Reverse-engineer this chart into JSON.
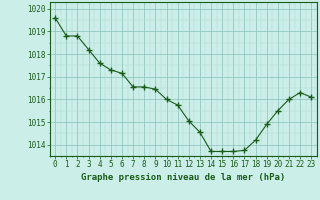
{
  "x": [
    0,
    1,
    2,
    3,
    4,
    5,
    6,
    7,
    8,
    9,
    10,
    11,
    12,
    13,
    14,
    15,
    16,
    17,
    18,
    19,
    20,
    21,
    22,
    23
  ],
  "y": [
    1019.6,
    1018.8,
    1018.8,
    1018.2,
    1017.6,
    1017.3,
    1017.15,
    1016.55,
    1016.55,
    1016.45,
    1016.0,
    1015.75,
    1015.05,
    1014.55,
    1013.7,
    1013.7,
    1013.7,
    1013.75,
    1014.2,
    1014.9,
    1015.5,
    1016.0,
    1016.3,
    1016.1
  ],
  "line_color": "#1a5c1a",
  "marker": "+",
  "marker_size": 4,
  "bg_color": "#cceee8",
  "grid_minor_color": "#aad8d0",
  "grid_major_color": "#88c0b8",
  "ylim": [
    1013.5,
    1020.3
  ],
  "yticks": [
    1014,
    1015,
    1016,
    1017,
    1018,
    1019,
    1020
  ],
  "xtick_labels": [
    "0",
    "1",
    "2",
    "3",
    "4",
    "5",
    "6",
    "7",
    "8",
    "9",
    "10",
    "11",
    "12",
    "13",
    "14",
    "15",
    "16",
    "17",
    "18",
    "19",
    "20",
    "21",
    "22",
    "23"
  ],
  "xlabel": "Graphe pression niveau de la mer (hPa)",
  "xlabel_fontsize": 6.5,
  "tick_fontsize": 5.5,
  "label_color": "#1a5c1a"
}
